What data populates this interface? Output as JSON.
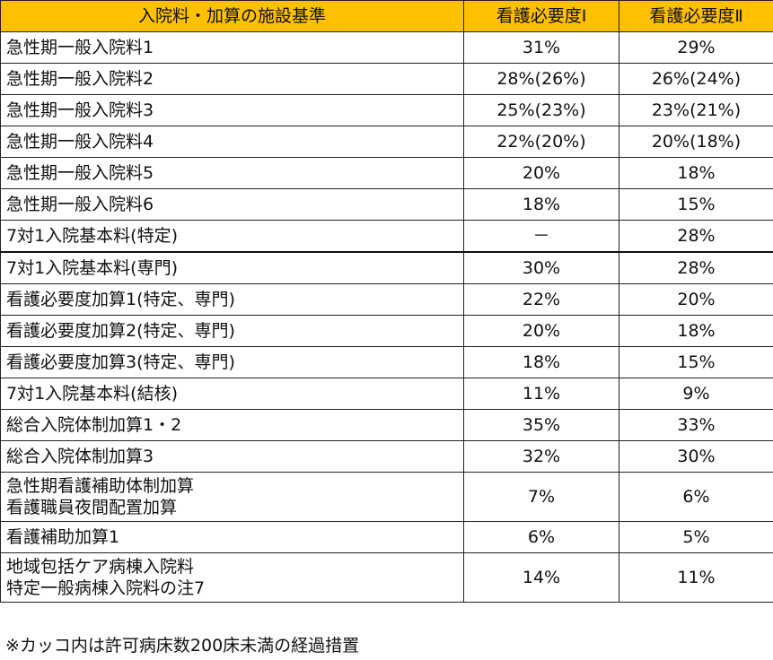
{
  "table": {
    "headers": [
      "入院料・加算の施設基準",
      "看護必要度Ⅰ",
      "看護必要度Ⅱ"
    ],
    "rows": [
      {
        "name": [
          "急性期一般入院料1"
        ],
        "v1": "31%",
        "v2": "29%"
      },
      {
        "name": [
          "急性期一般入院料2"
        ],
        "v1": "28%(26%)",
        "v2": "26%(24%)"
      },
      {
        "name": [
          "急性期一般入院料3"
        ],
        "v1": "25%(23%)",
        "v2": "23%(21%)"
      },
      {
        "name": [
          "急性期一般入院料4"
        ],
        "v1": "22%(20%)",
        "v2": "20%(18%)"
      },
      {
        "name": [
          "急性期一般入院料5"
        ],
        "v1": "20%",
        "v2": "18%"
      },
      {
        "name": [
          "急性期一般入院料6"
        ],
        "v1": "18%",
        "v2": "15%"
      },
      {
        "name": [
          "7対1入院基本料(特定)"
        ],
        "v1": "－",
        "v2": "28%"
      },
      {
        "name": [
          "7対1入院基本料(専門)"
        ],
        "v1": "30%",
        "v2": "28%"
      },
      {
        "name": [
          "看護必要度加算1(特定、専門)"
        ],
        "v1": "22%",
        "v2": "20%"
      },
      {
        "name": [
          "看護必要度加算2(特定、専門)"
        ],
        "v1": "20%",
        "v2": "18%"
      },
      {
        "name": [
          "看護必要度加算3(特定、専門)"
        ],
        "v1": "18%",
        "v2": "15%"
      },
      {
        "name": [
          "7対1入院基本料(結核)"
        ],
        "v1": "11%",
        "v2": "9%"
      },
      {
        "name": [
          "総合入院体制加算1・2"
        ],
        "v1": "35%",
        "v2": "33%"
      },
      {
        "name": [
          "総合入院体制加算3"
        ],
        "v1": "32%",
        "v2": "30%"
      },
      {
        "name": [
          "急性期看護補助体制加算",
          "看護職員夜間配置加算"
        ],
        "v1": "7%",
        "v2": "6%"
      },
      {
        "name": [
          "看護補助加算1"
        ],
        "v1": "6%",
        "v2": "5%"
      },
      {
        "name": [
          "地域包括ケア病棟入院料",
          "特定一般病棟入院料の注7"
        ],
        "v1": "14%",
        "v2": "11%"
      }
    ]
  },
  "footnote": "※カッコ内は許可病床数200床未満の経過措置",
  "colors": {
    "header_bg": "#FFC000",
    "border": "#222222"
  }
}
